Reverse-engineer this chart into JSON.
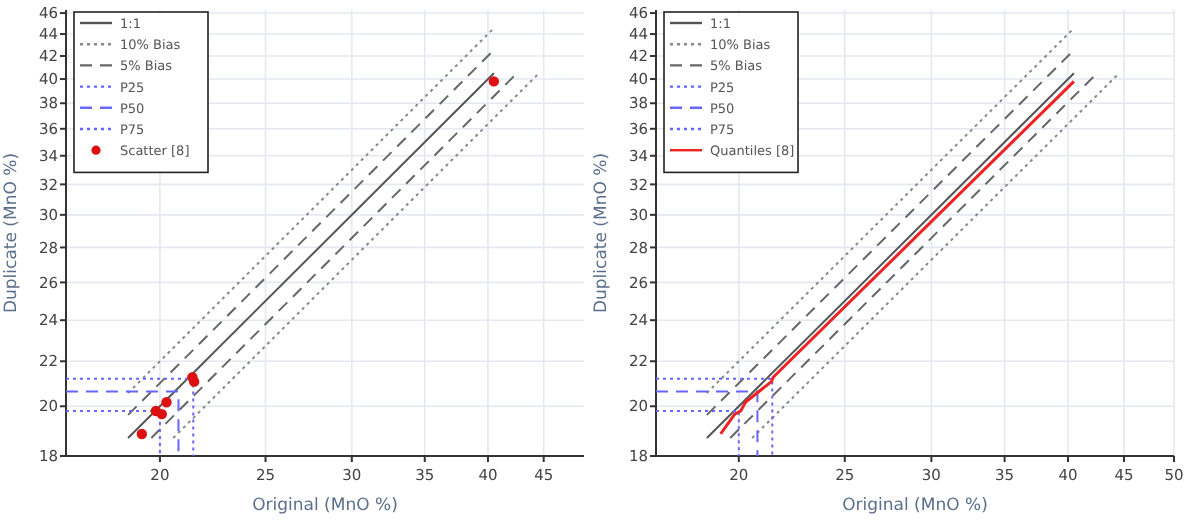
{
  "chart_data": [
    {
      "type": "line",
      "xlabel": "Original (MnO %)",
      "ylabel": "Duplicate (MnO %)",
      "log": "xy",
      "grid": true,
      "legend": "top left",
      "xlim": [
        16.4,
        49
      ],
      "ylim": [
        18,
        46.3
      ],
      "xticks": [
        20,
        25,
        30,
        35,
        40,
        45
      ],
      "yticks": [
        18,
        20,
        22,
        24,
        26,
        28,
        30,
        32,
        34,
        36,
        38,
        40,
        42,
        44,
        46
      ],
      "series": [
        {
          "name": "1:1",
          "type": "line",
          "color": "#555555",
          "line_style": "solid",
          "x": [
            18.7,
            40.5
          ],
          "values": [
            18.7,
            40.5
          ]
        },
        {
          "name": "10% Bias",
          "type": "line",
          "color": "#888888",
          "line_style": "dotted",
          "x": [
            18.7,
            40.5
          ],
          "values": [
            20.57,
            44.55
          ]
        },
        {
          "type": "line",
          "color": "#888888",
          "line_style": "dotted",
          "x": [
            20.57,
            44.55
          ],
          "values": [
            18.7,
            40.5
          ]
        },
        {
          "name": "5% Bias",
          "type": "line",
          "color": "#666666",
          "line_style": "dashed",
          "x": [
            18.7,
            40.5
          ],
          "values": [
            19.64,
            42.53
          ]
        },
        {
          "type": "line",
          "color": "#666666",
          "line_style": "dashed",
          "x": [
            19.64,
            42.53
          ],
          "values": [
            18.7,
            40.5
          ]
        },
        {
          "name": "P25",
          "type": "line",
          "color": "#6666ff",
          "line_style": "dotted",
          "x": [
            16.4,
            20,
            20
          ],
          "values": [
            19.8,
            19.8,
            18
          ]
        },
        {
          "name": "P50",
          "type": "line",
          "color": "#6666ff",
          "line_style": "dashed",
          "x": [
            16.4,
            20.8,
            20.8
          ],
          "values": [
            20.63,
            20.63,
            18
          ]
        },
        {
          "name": "P75",
          "type": "line",
          "color": "#6666ff",
          "line_style": "dotted",
          "x": [
            16.4,
            21.46,
            21.46
          ],
          "values": [
            21.2,
            21.2,
            18
          ]
        },
        {
          "name": "Scatter [8]",
          "type": "scatter",
          "color": "#dd1111",
          "marker": "circle",
          "x": [
            19.25,
            19.83,
            20.08,
            20.28,
            21.42,
            21.5,
            40.5
          ],
          "values": [
            18.86,
            19.8,
            19.67,
            20.17,
            21.27,
            21.07,
            39.8
          ]
        }
      ]
    },
    {
      "type": "line",
      "xlabel": "Original (MnO %)",
      "ylabel": "Duplicate (MnO %)",
      "log": "xy",
      "grid": true,
      "legend": "top left",
      "xlim": [
        16.8,
        50
      ],
      "ylim": [
        18,
        46.3
      ],
      "xticks": [
        20,
        25,
        30,
        35,
        40,
        45,
        50
      ],
      "yticks": [
        18,
        20,
        22,
        24,
        26,
        28,
        30,
        32,
        34,
        36,
        38,
        40,
        42,
        44,
        46
      ],
      "series": [
        {
          "name": "1:1",
          "type": "line",
          "color": "#555555",
          "line_style": "solid",
          "x": [
            18.7,
            40.5
          ],
          "values": [
            18.7,
            40.5
          ]
        },
        {
          "name": "10% Bias",
          "type": "line",
          "color": "#888888",
          "line_style": "dotted",
          "x": [
            18.7,
            40.5
          ],
          "values": [
            20.57,
            44.55
          ]
        },
        {
          "type": "line",
          "color": "#888888",
          "line_style": "dotted",
          "x": [
            20.57,
            44.55
          ],
          "values": [
            18.7,
            40.5
          ]
        },
        {
          "name": "5% Bias",
          "type": "line",
          "color": "#666666",
          "line_style": "dashed",
          "x": [
            18.7,
            40.5
          ],
          "values": [
            19.64,
            42.53
          ]
        },
        {
          "type": "line",
          "color": "#666666",
          "line_style": "dashed",
          "x": [
            19.64,
            42.53
          ],
          "values": [
            18.7,
            40.5
          ]
        },
        {
          "name": "P25",
          "type": "line",
          "color": "#6666ff",
          "line_style": "dotted",
          "x": [
            16.8,
            20,
            20
          ],
          "values": [
            19.8,
            19.8,
            18
          ]
        },
        {
          "name": "P50",
          "type": "line",
          "color": "#6666ff",
          "line_style": "dashed",
          "x": [
            16.8,
            20.8,
            20.8
          ],
          "values": [
            20.63,
            20.63,
            18
          ]
        },
        {
          "name": "P75",
          "type": "line",
          "color": "#6666ff",
          "line_style": "dotted",
          "x": [
            16.8,
            21.46,
            21.46
          ],
          "values": [
            21.2,
            21.2,
            18
          ]
        },
        {
          "name": "Quantiles [8]",
          "type": "line",
          "color": "#ee2222",
          "line_style": "solid",
          "x": [
            19.25,
            19.83,
            20.08,
            20.28,
            21.42,
            21.5,
            40.5
          ],
          "values": [
            18.86,
            19.67,
            19.8,
            20.17,
            21.07,
            21.27,
            39.8
          ]
        }
      ]
    }
  ]
}
